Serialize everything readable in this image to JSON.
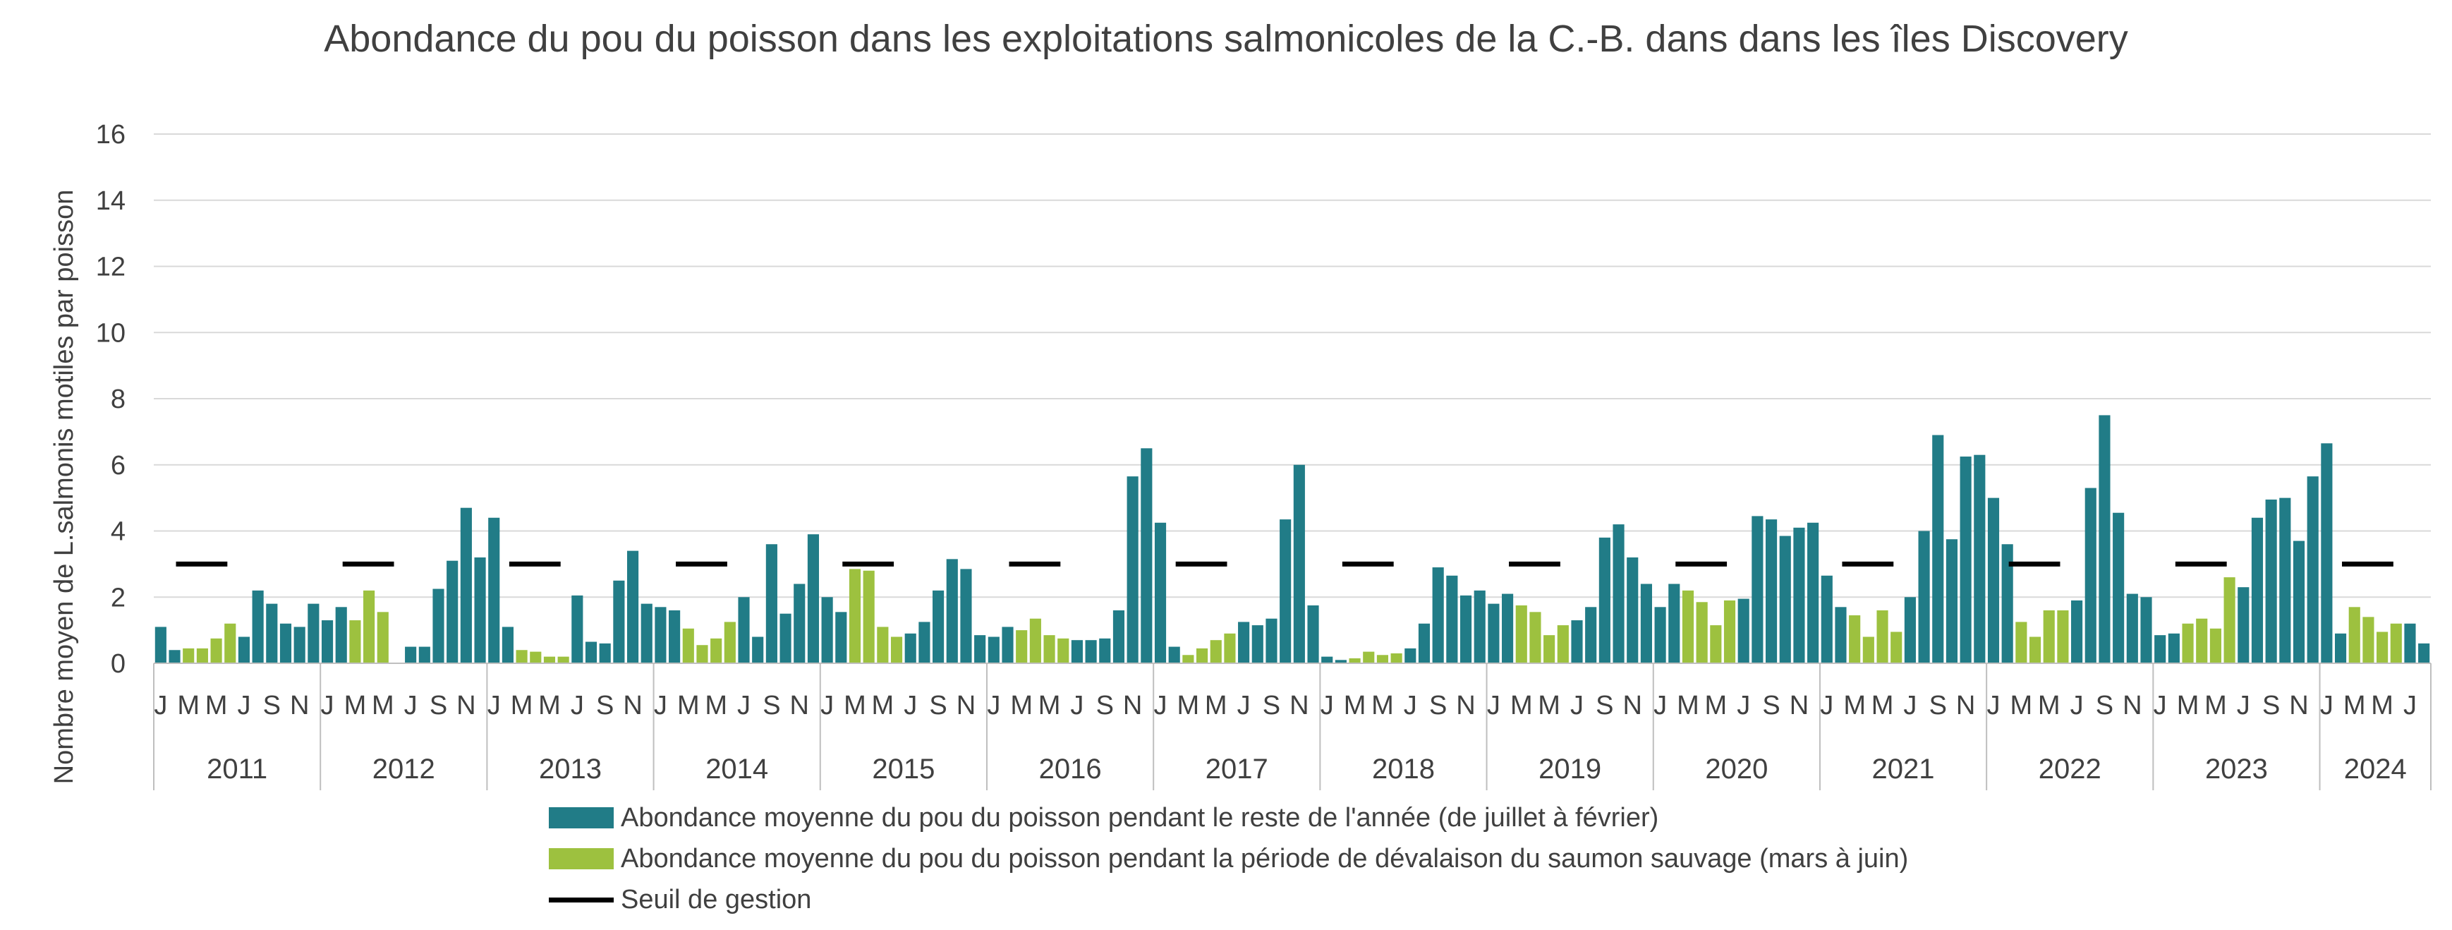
{
  "chart_data": {
    "type": "bar",
    "title": "Abondance du pou du poisson dans les exploitations salmonicoles de la C.-B. dans dans les îles Discovery",
    "ylabel": "Nombre moyen de L.salmonis motiles par poisson",
    "xlabel": "",
    "ylim": [
      0,
      16
    ],
    "yticks": [
      0,
      2,
      4,
      6,
      8,
      10,
      12,
      14,
      16
    ],
    "grid": true,
    "legend_position": "bottom",
    "month_tick_labels": [
      "J",
      "M",
      "M",
      "J",
      "S",
      "N"
    ],
    "month_tick_indices": [
      0,
      2,
      4,
      6,
      8,
      10
    ],
    "years": [
      {
        "year": "2011",
        "values": [
          1.1,
          0.4,
          0.45,
          0.45,
          0.75,
          1.2,
          0.8,
          2.2,
          1.8,
          1.2,
          1.1,
          1.8
        ]
      },
      {
        "year": "2012",
        "values": [
          1.3,
          1.7,
          1.3,
          2.2,
          1.55,
          0.0,
          0.5,
          0.5,
          2.25,
          3.1,
          4.7,
          3.2
        ]
      },
      {
        "year": "2013",
        "values": [
          4.4,
          1.1,
          0.4,
          0.35,
          0.2,
          0.2,
          2.05,
          0.65,
          0.6,
          2.5,
          3.4,
          1.8
        ]
      },
      {
        "year": "2014",
        "values": [
          1.7,
          1.6,
          1.05,
          0.55,
          0.75,
          1.25,
          2.0,
          0.8,
          3.6,
          1.5,
          2.4,
          3.9
        ]
      },
      {
        "year": "2015",
        "values": [
          2.0,
          1.55,
          2.85,
          2.8,
          1.1,
          0.8,
          0.9,
          1.25,
          2.2,
          3.15,
          2.85,
          0.85
        ]
      },
      {
        "year": "2016",
        "values": [
          0.8,
          1.1,
          1.0,
          1.35,
          0.85,
          0.75,
          0.7,
          0.7,
          0.75,
          1.6,
          5.65,
          6.5
        ]
      },
      {
        "year": "2017",
        "values": [
          4.25,
          0.5,
          0.25,
          0.45,
          0.7,
          0.9,
          1.25,
          1.15,
          1.35,
          4.35,
          6.0,
          1.75
        ]
      },
      {
        "year": "2018",
        "values": [
          0.2,
          0.1,
          0.15,
          0.35,
          0.25,
          0.3,
          0.45,
          1.2,
          2.9,
          2.65,
          2.05,
          2.2
        ]
      },
      {
        "year": "2019",
        "values": [
          1.8,
          2.1,
          1.75,
          1.55,
          0.85,
          1.15,
          1.3,
          1.7,
          3.8,
          4.2,
          3.2,
          2.4
        ]
      },
      {
        "year": "2020",
        "values": [
          1.7,
          2.4,
          2.2,
          1.85,
          1.15,
          1.9,
          1.95,
          4.45,
          4.35,
          3.85,
          4.1,
          4.25
        ]
      },
      {
        "year": "2021",
        "values": [
          2.65,
          1.7,
          1.45,
          0.8,
          1.6,
          0.95,
          2.0,
          4.0,
          6.9,
          3.75,
          6.25,
          6.3
        ]
      },
      {
        "year": "2022",
        "values": [
          5.0,
          3.6,
          1.25,
          0.8,
          1.6,
          1.6,
          1.9,
          5.3,
          7.5,
          4.55,
          2.1,
          2.0
        ]
      },
      {
        "year": "2023",
        "values": [
          0.85,
          0.9,
          1.2,
          1.35,
          1.05,
          2.6,
          2.3,
          4.4,
          4.95,
          5.0,
          3.7,
          5.65
        ]
      },
      {
        "year": "2024",
        "values": [
          6.65,
          0.9,
          1.7,
          1.4,
          0.95,
          1.2,
          1.2,
          0.6
        ]
      }
    ],
    "management_threshold": 3,
    "series": [
      {
        "name": "Abondance moyenne du pou du poisson pendant le reste de l'année (de juillet à février)",
        "color": "#217C87",
        "months": "juillet à février"
      },
      {
        "name": "Abondance moyenne du pou du poisson pendant la période de dévalaison du saumon sauvage (mars à juin)",
        "color": "#9DC13F",
        "months": "mars à juin"
      },
      {
        "name": "Seuil de gestion",
        "color": "#000000",
        "type": "line"
      }
    ]
  },
  "colors": {
    "gridline": "#D9D9D9",
    "axis": "#BFBFBF",
    "text": "#404040"
  }
}
